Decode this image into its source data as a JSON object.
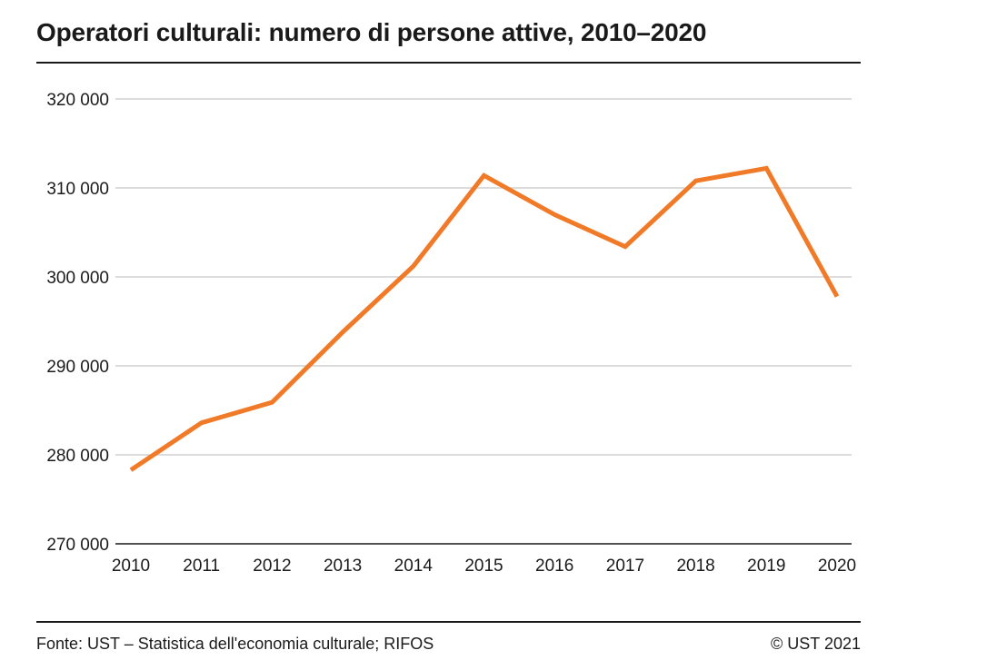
{
  "title": "Operatori culturali: numero di persone attive, 2010–2020",
  "footer": {
    "source": "Fonte: UST – Statistica dell'economia culturale; RIFOS",
    "copyright": "© UST 2021"
  },
  "colors": {
    "line": "#f07a27",
    "grid": "#c8c8c8",
    "axis": "#1a1a1a"
  },
  "chart_data": {
    "type": "line",
    "title": "Operatori culturali: numero di persone attive, 2010–2020",
    "xlabel": "",
    "ylabel": "",
    "x": [
      "2010",
      "2011",
      "2012",
      "2013",
      "2014",
      "2015",
      "2016",
      "2017",
      "2018",
      "2019",
      "2020"
    ],
    "series": [
      {
        "values": [
          278300,
          283600,
          285900,
          293800,
          301200,
          311400,
          307000,
          303400,
          310800,
          312200,
          297800
        ]
      }
    ],
    "yticks": [
      270000,
      280000,
      290000,
      300000,
      310000,
      320000
    ],
    "ytick_labels": [
      "270 000",
      "280 000",
      "290 000",
      "300 000",
      "310 000",
      "320 000"
    ],
    "ylim": [
      270000,
      320000
    ],
    "grid": true,
    "legend": "none"
  }
}
